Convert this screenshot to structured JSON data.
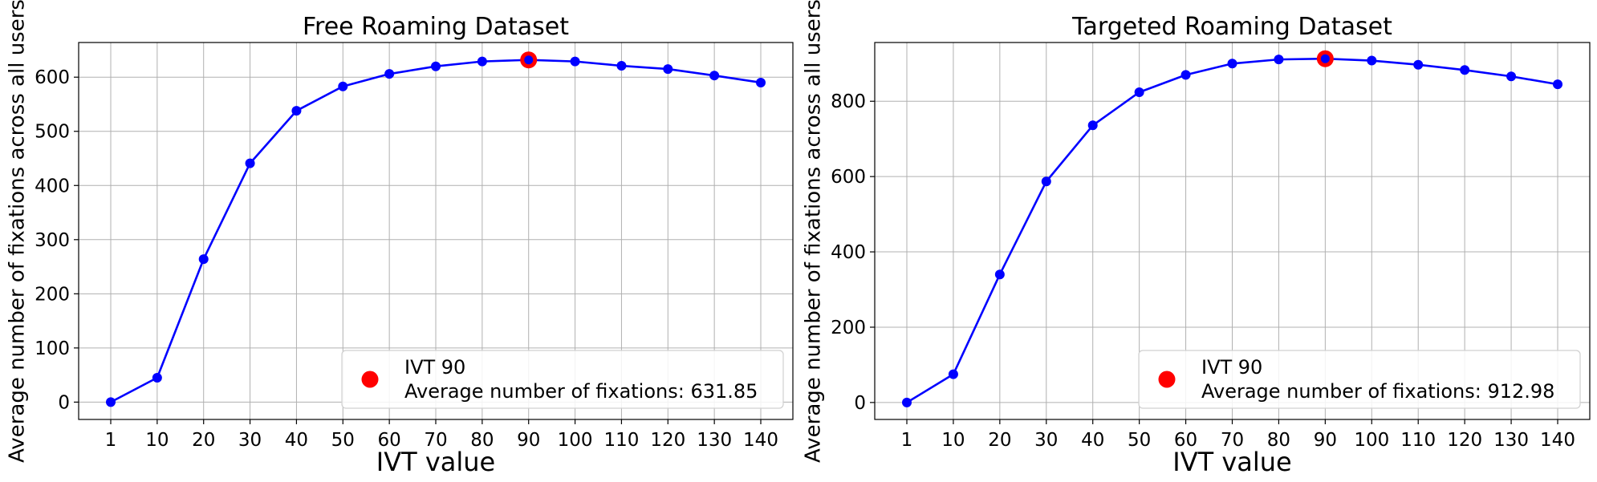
{
  "chart_data": [
    {
      "type": "line",
      "title": "Free Roaming Dataset",
      "xlabel": "IVT value",
      "ylabel": "Average number of fixations across all users",
      "categories": [
        "1",
        "10",
        "20",
        "30",
        "40",
        "50",
        "60",
        "70",
        "80",
        "90",
        "100",
        "110",
        "120",
        "130",
        "140"
      ],
      "series": [
        {
          "values": [
            0,
            45,
            264,
            441,
            538,
            583,
            606,
            620,
            629,
            631.85,
            629,
            621,
            615,
            603,
            590
          ],
          "color": "#0000ff"
        }
      ],
      "highlight": {
        "category": "90",
        "value": 631.85,
        "color": "#ff0000"
      },
      "legend": {
        "line1": "IVT 90",
        "line2": "Average number of fixations: 631.85",
        "placement": "lower-right"
      },
      "yticks": [
        0,
        100,
        200,
        300,
        400,
        500,
        600
      ],
      "ylim": [
        -32,
        664
      ],
      "grid": true
    },
    {
      "type": "line",
      "title": "Targeted Roaming Dataset",
      "xlabel": "IVT value",
      "ylabel": "Average number of fixations across all users",
      "categories": [
        "1",
        "10",
        "20",
        "30",
        "40",
        "50",
        "60",
        "70",
        "80",
        "90",
        "100",
        "110",
        "120",
        "130",
        "140"
      ],
      "series": [
        {
          "values": [
            0,
            75,
            340,
            587,
            736,
            824,
            870,
            900,
            911,
            912.98,
            908,
            897,
            883,
            866,
            845
          ],
          "color": "#0000ff"
        }
      ],
      "highlight": {
        "category": "90",
        "value": 912.98,
        "color": "#ff0000"
      },
      "legend": {
        "line1": "IVT 90",
        "line2": "Average number of fixations: 912.98",
        "placement": "lower-right"
      },
      "yticks": [
        0,
        200,
        400,
        600,
        800
      ],
      "ylim": [
        -45,
        956
      ],
      "grid": true
    }
  ]
}
